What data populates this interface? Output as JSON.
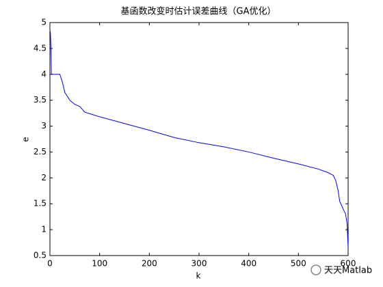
{
  "chart_data": {
    "type": "line",
    "title": "基函数改变时估计误差曲线（GA优化）",
    "xlabel": "k",
    "ylabel": "e",
    "x": [
      0,
      1,
      2,
      3,
      20,
      25,
      30,
      40,
      50,
      60,
      70,
      100,
      150,
      200,
      250,
      300,
      350,
      400,
      450,
      500,
      540,
      560,
      570,
      575,
      580,
      583,
      590,
      595,
      598,
      600
    ],
    "values": [
      4.85,
      4.8,
      4.5,
      4.0,
      4.0,
      3.85,
      3.65,
      3.5,
      3.42,
      3.38,
      3.27,
      3.18,
      3.05,
      2.92,
      2.78,
      2.68,
      2.6,
      2.5,
      2.38,
      2.27,
      2.17,
      2.1,
      2.05,
      1.95,
      1.75,
      1.55,
      1.4,
      1.3,
      1.1,
      0.65
    ],
    "color": "#0000ff",
    "xlim": [
      0,
      600
    ],
    "xticks": [
      0,
      100,
      200,
      300,
      400,
      500,
      600
    ],
    "ylim": [
      0.5,
      5
    ],
    "yticks": [
      0.5,
      1,
      1.5,
      2,
      2.5,
      3,
      3.5,
      4,
      4.5,
      5
    ],
    "grid": false,
    "watermark": "天天Matlab"
  }
}
